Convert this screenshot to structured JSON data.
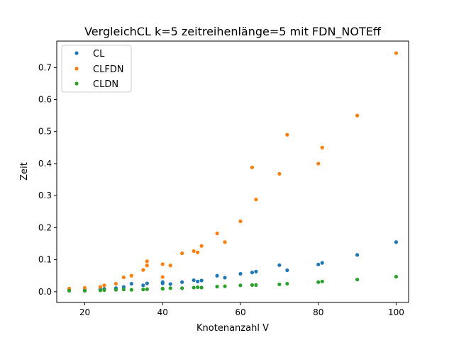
{
  "chart_data": {
    "type": "scatter",
    "title": "VergleichCL k=5 zeitreihenlänge=5 mit FDN_NOTEff",
    "xlabel": "Knotenanzahl V",
    "ylabel": "Zeit",
    "xlim": [
      12.8,
      103.2
    ],
    "ylim": [
      -0.0335,
      0.7825
    ],
    "xticks": [
      20,
      40,
      60,
      80,
      100
    ],
    "yticks": [
      0.0,
      0.1,
      0.2,
      0.3,
      0.4,
      0.5,
      0.6,
      0.7
    ],
    "xtick_labels": [
      "20",
      "40",
      "60",
      "80",
      "100"
    ],
    "ytick_labels": [
      "0.0",
      "0.1",
      "0.2",
      "0.3",
      "0.4",
      "0.5",
      "0.6",
      "0.7"
    ],
    "legend_position": "top-left",
    "grid": false,
    "series": [
      {
        "name": "CL",
        "color": "#1f77b4",
        "points": [
          [
            16,
            0.005
          ],
          [
            20,
            0.005
          ],
          [
            24,
            0.008
          ],
          [
            25,
            0.009
          ],
          [
            28,
            0.011
          ],
          [
            30,
            0.015
          ],
          [
            32,
            0.025
          ],
          [
            35,
            0.02
          ],
          [
            36,
            0.026
          ],
          [
            40,
            0.026
          ],
          [
            40,
            0.03
          ],
          [
            42,
            0.024
          ],
          [
            45,
            0.03
          ],
          [
            48,
            0.036
          ],
          [
            49,
            0.032
          ],
          [
            50,
            0.035
          ],
          [
            54,
            0.05
          ],
          [
            56,
            0.044
          ],
          [
            60,
            0.056
          ],
          [
            63,
            0.06
          ],
          [
            64,
            0.063
          ],
          [
            70,
            0.083
          ],
          [
            72,
            0.067
          ],
          [
            80,
            0.085
          ],
          [
            81,
            0.09
          ],
          [
            90,
            0.115
          ],
          [
            100,
            0.155
          ]
        ]
      },
      {
        "name": "CLFDN",
        "color": "#ff7f0e",
        "points": [
          [
            16,
            0.01
          ],
          [
            20,
            0.012
          ],
          [
            24,
            0.015
          ],
          [
            25,
            0.02
          ],
          [
            28,
            0.025
          ],
          [
            30,
            0.045
          ],
          [
            32,
            0.05
          ],
          [
            35,
            0.068
          ],
          [
            36,
            0.082
          ],
          [
            36,
            0.095
          ],
          [
            40,
            0.086
          ],
          [
            40,
            0.046
          ],
          [
            42,
            0.082
          ],
          [
            45,
            0.12
          ],
          [
            48,
            0.127
          ],
          [
            49,
            0.123
          ],
          [
            50,
            0.143
          ],
          [
            54,
            0.182
          ],
          [
            56,
            0.155
          ],
          [
            60,
            0.22
          ],
          [
            63,
            0.388
          ],
          [
            64,
            0.288
          ],
          [
            70,
            0.368
          ],
          [
            72,
            0.49
          ],
          [
            80,
            0.4
          ],
          [
            81,
            0.45
          ],
          [
            90,
            0.55
          ],
          [
            100,
            0.745
          ]
        ]
      },
      {
        "name": "CLDN",
        "color": "#2ca02c",
        "points": [
          [
            16,
            0.003
          ],
          [
            20,
            0.003
          ],
          [
            24,
            0.004
          ],
          [
            25,
            0.005
          ],
          [
            28,
            0.006
          ],
          [
            30,
            0.007
          ],
          [
            32,
            0.006
          ],
          [
            35,
            0.007
          ],
          [
            36,
            0.008
          ],
          [
            40,
            0.009
          ],
          [
            40,
            0.01
          ],
          [
            42,
            0.011
          ],
          [
            45,
            0.011
          ],
          [
            48,
            0.013
          ],
          [
            49,
            0.014
          ],
          [
            50,
            0.013
          ],
          [
            54,
            0.016
          ],
          [
            56,
            0.017
          ],
          [
            60,
            0.02
          ],
          [
            63,
            0.021
          ],
          [
            64,
            0.021
          ],
          [
            70,
            0.023
          ],
          [
            72,
            0.025
          ],
          [
            80,
            0.03
          ],
          [
            81,
            0.032
          ],
          [
            90,
            0.038
          ],
          [
            100,
            0.047
          ]
        ]
      }
    ]
  }
}
